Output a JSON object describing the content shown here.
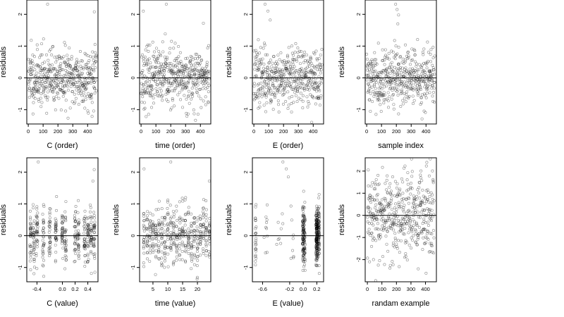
{
  "chart_data": [
    {
      "type": "scatter",
      "name": "C (order)",
      "xlabel": "C (order)",
      "ylabel": "residuals",
      "xlim": [
        -10,
        470
      ],
      "ylim": [
        -1.45,
        2.45
      ],
      "xticks": [
        0,
        100,
        200,
        300,
        400
      ],
      "yticks": [
        -1,
        0,
        1,
        2
      ],
      "reference_line_y": 0,
      "generator": {
        "kind": "index",
        "n": 460,
        "seed": 11,
        "sd": 0.45,
        "dist": "uniform-index",
        "outliers": [
          [
            130,
            2.32
          ],
          [
            445,
            2.08
          ],
          [
            20,
            1.18
          ]
        ]
      }
    },
    {
      "type": "scatter",
      "name": "time (order)",
      "xlabel": "time (order)",
      "ylabel": "residuals",
      "xlim": [
        -10,
        470
      ],
      "ylim": [
        -1.45,
        2.45
      ],
      "xticks": [
        0,
        100,
        200,
        300,
        400
      ],
      "yticks": [
        -1,
        0,
        1,
        2
      ],
      "reference_line_y": 0,
      "generator": {
        "kind": "index",
        "n": 460,
        "seed": 23,
        "sd": 0.45,
        "dist": "uniform-index",
        "outliers": [
          [
            15,
            2.1
          ],
          [
            170,
            2.32
          ],
          [
            420,
            1.72
          ]
        ]
      }
    },
    {
      "type": "scatter",
      "name": "E (order)",
      "xlabel": "E (order)",
      "ylabel": "residuals",
      "xlim": [
        -10,
        470
      ],
      "ylim": [
        -1.45,
        2.45
      ],
      "xticks": [
        0,
        100,
        200,
        300,
        400
      ],
      "yticks": [
        -1,
        0,
        1,
        2
      ],
      "reference_line_y": 0,
      "generator": {
        "kind": "index",
        "n": 460,
        "seed": 37,
        "sd": 0.45,
        "dist": "uniform-index",
        "outliers": [
          [
            75,
            2.32
          ],
          [
            95,
            2.1
          ],
          [
            110,
            1.82
          ],
          [
            30,
            1.2
          ]
        ]
      }
    },
    {
      "type": "scatter",
      "name": "sample index",
      "xlabel": "sample index",
      "ylabel": "residuals",
      "xlim": [
        -10,
        470
      ],
      "ylim": [
        -1.45,
        2.45
      ],
      "xticks": [
        0,
        100,
        200,
        300,
        400
      ],
      "yticks": [
        -1,
        0,
        1,
        2
      ],
      "reference_line_y": 0,
      "generator": {
        "kind": "index",
        "n": 460,
        "seed": 41,
        "sd": 0.45,
        "dist": "uniform-index",
        "outliers": [
          [
            195,
            2.32
          ],
          [
            205,
            2.15
          ],
          [
            215,
            1.98
          ],
          [
            210,
            1.7
          ]
        ]
      }
    },
    {
      "type": "scatter",
      "name": "C (value)",
      "xlabel": "C (value)",
      "ylabel": "residuals",
      "xlim": [
        -0.56,
        0.56
      ],
      "ylim": [
        -1.45,
        2.45
      ],
      "xticks": [
        -0.4,
        0.0,
        0.2,
        0.4
      ],
      "xtick_labels": [
        "-0.4",
        "0.0",
        "0.2",
        "0.4"
      ],
      "yticks": [
        -1,
        0,
        1,
        2
      ],
      "reference_line_y": 0,
      "generator": {
        "kind": "columns",
        "seed": 53,
        "sd": 0.45,
        "columns": [
          -0.5,
          -0.45,
          -0.4,
          -0.3,
          -0.2,
          -0.1,
          0.0,
          0.05,
          0.2,
          0.25,
          0.35,
          0.4,
          0.45,
          0.5
        ],
        "per_column": 32,
        "jitter": 0.012,
        "outliers": [
          [
            -0.38,
            2.32
          ],
          [
            0.5,
            2.08
          ],
          [
            0.48,
            1.72
          ]
        ]
      }
    },
    {
      "type": "scatter",
      "name": "time (value)",
      "xlabel": "time (value)",
      "ylabel": "residuals",
      "xlim": [
        0.5,
        24.5
      ],
      "ylim": [
        -1.45,
        2.45
      ],
      "xticks": [
        5,
        10,
        15,
        20
      ],
      "yticks": [
        -1,
        0,
        1,
        2
      ],
      "reference_line_y": 0,
      "generator": {
        "kind": "columns",
        "seed": 67,
        "sd": 0.42,
        "columns": [
          2,
          3,
          4,
          5,
          6,
          7,
          8,
          9,
          10,
          11,
          12,
          13,
          14,
          15,
          16,
          17,
          18,
          19,
          20,
          21,
          22,
          23,
          24
        ],
        "per_column": 20,
        "jitter": 0.15,
        "outliers": [
          [
            2,
            2.1
          ],
          [
            11,
            2.32
          ],
          [
            24,
            1.72
          ]
        ]
      }
    },
    {
      "type": "scatter",
      "name": "E (value)",
      "xlabel": "E (value)",
      "ylabel": "residuals",
      "xlim": [
        -0.75,
        0.3
      ],
      "ylim": [
        -1.45,
        2.45
      ],
      "xticks": [
        -0.6,
        -0.2,
        0.0,
        0.2
      ],
      "xtick_labels": [
        "-0.6",
        "-0.2",
        "0.0",
        "0.2"
      ],
      "yticks": [
        -1,
        0,
        1,
        2
      ],
      "reference_line_y": 0,
      "generator": {
        "kind": "clusters",
        "seed": 79,
        "sd": 0.45,
        "clusters": [
          [
            -0.7,
            25,
            0.006
          ],
          [
            -0.55,
            10,
            0.03
          ],
          [
            -0.35,
            8,
            0.05
          ],
          [
            -0.15,
            8,
            0.05
          ],
          [
            0.0,
            90,
            0.012
          ],
          [
            0.02,
            40,
            0.01
          ],
          [
            0.2,
            170,
            0.012
          ],
          [
            0.23,
            70,
            0.008
          ]
        ],
        "outliers": [
          [
            -0.3,
            2.32
          ],
          [
            -0.25,
            2.1
          ],
          [
            -0.22,
            1.85
          ]
        ]
      }
    },
    {
      "type": "scatter",
      "name": "randam example",
      "xlabel": "randam example",
      "ylabel": "residuals",
      "xlim": [
        -15,
        475
      ],
      "ylim": [
        -3.0,
        2.6
      ],
      "xticks": [
        0,
        100,
        200,
        300,
        400
      ],
      "yticks": [
        -2,
        -1,
        0,
        1,
        2
      ],
      "reference_line_y": 0,
      "generator": {
        "kind": "index",
        "n": 460,
        "seed": 97,
        "sd": 1.0,
        "dist": "uniform-noise",
        "outliers": []
      }
    }
  ]
}
